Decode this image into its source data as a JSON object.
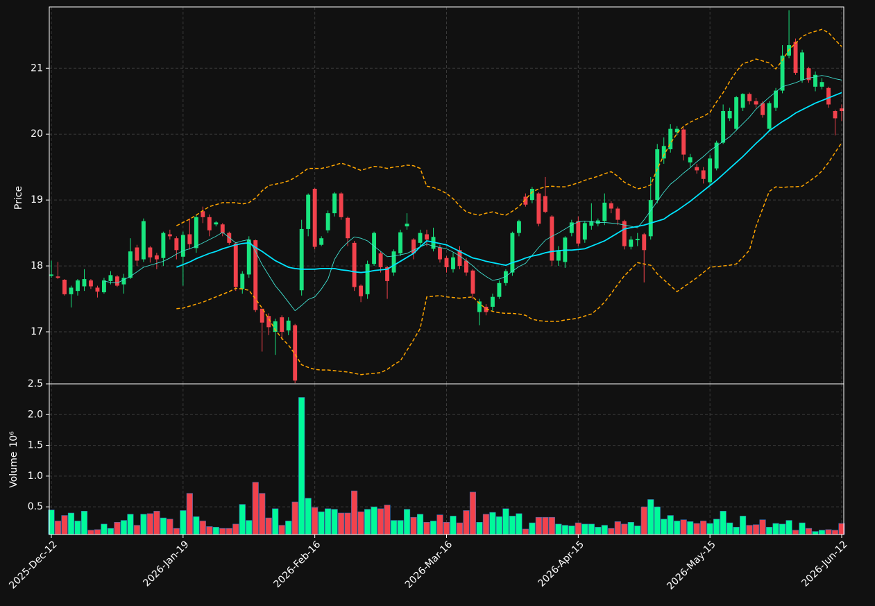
{
  "chart_data": {
    "type": "candlestick",
    "ylabel": "Price",
    "volume_label": "Volume",
    "volume_exponent": "10⁶",
    "up_color": "#19e57f",
    "down_color": "#f2424c",
    "volume_up_color": "#00fa9a",
    "volume_down_color": "#f2424c",
    "grid": true,
    "ylim": [
      16.21,
      21.93
    ],
    "yticks": [
      17,
      18,
      19,
      20,
      21
    ],
    "volume_ylim": [
      0.05,
      2.5
    ],
    "volume_yticks": [
      0.5,
      {
        "value": 1,
        "label": "1.0"
      },
      1.5,
      {
        "value": 2,
        "label": "2.0"
      },
      2.5
    ],
    "categories": [
      "2025-Dec-12",
      null,
      null,
      null,
      null,
      null,
      null,
      null,
      null,
      null,
      null,
      null,
      null,
      null,
      null,
      null,
      null,
      null,
      null,
      null,
      "2026-Jan-19",
      null,
      null,
      null,
      null,
      null,
      null,
      null,
      null,
      null,
      null,
      null,
      null,
      null,
      null,
      null,
      null,
      null,
      null,
      null,
      "2026-Feb-16",
      null,
      null,
      null,
      null,
      null,
      null,
      null,
      null,
      null,
      null,
      null,
      null,
      null,
      null,
      null,
      null,
      null,
      null,
      null,
      "2026-Mar-16",
      null,
      null,
      null,
      null,
      null,
      null,
      null,
      null,
      null,
      null,
      null,
      null,
      null,
      null,
      null,
      null,
      null,
      null,
      null,
      "2026-Apr-15",
      null,
      null,
      null,
      null,
      null,
      null,
      null,
      null,
      null,
      null,
      null,
      null,
      null,
      null,
      null,
      null,
      null,
      null,
      null,
      "2026-May-15",
      null,
      null,
      null,
      null,
      null,
      null,
      null,
      null,
      null,
      null,
      null,
      null,
      null,
      null,
      null,
      null,
      null,
      null,
      null,
      "2026-Jun-12"
    ],
    "open": [
      17.85,
      17.84,
      17.79,
      17.57,
      17.62,
      17.69,
      17.78,
      17.67,
      17.6,
      17.77,
      17.84,
      17.72,
      17.82,
      18.28,
      18.1,
      18.28,
      18.16,
      18.12,
      18.48,
      18.42,
      18.14,
      18.48,
      18.27,
      18.83,
      18.74,
      18.63,
      18.63,
      18.5,
      18.34,
      17.65,
      17.87,
      18.39,
      17.35,
      17.24,
      17.0,
      17.22,
      17.02,
      17.1,
      17.63,
      18.56,
      19.17,
      18.32,
      18.54,
      18.8,
      19.1,
      18.73,
      18.35,
      17.7,
      17.57,
      18.03,
      18.19,
      17.98,
      17.9,
      18.19,
      18.6,
      18.4,
      18.35,
      18.48,
      18.26,
      18.28,
      18.12,
      17.95,
      18.24,
      18.08,
      17.93,
      17.3,
      17.38,
      17.38,
      17.53,
      17.74,
      17.9,
      18.5,
      19.05,
      19.0,
      19.1,
      19.06,
      18.75,
      18.08,
      18.06,
      18.5,
      18.68,
      18.4,
      18.61,
      18.64,
      18.68,
      18.95,
      18.87,
      18.68,
      18.29,
      18.39,
      18.48,
      18.45,
      19.0,
      19.63,
      19.77,
      20.03,
      20.07,
      19.57,
      19.5,
      19.45,
      19.27,
      19.48,
      19.87,
      20.24,
      20.08,
      20.4,
      20.61,
      20.5,
      20.47,
      20.08,
      20.4,
      20.66,
      21.19,
      21.4,
      20.82,
      21.0,
      20.72,
      20.72,
      20.7,
      20.35,
      20.39
    ],
    "high": [
      18.08,
      18.06,
      17.8,
      17.7,
      17.8,
      17.95,
      17.8,
      17.7,
      17.82,
      17.92,
      17.86,
      17.88,
      18.42,
      18.32,
      18.72,
      18.3,
      18.2,
      18.52,
      18.55,
      18.45,
      18.52,
      18.72,
      18.78,
      18.9,
      18.78,
      18.68,
      18.65,
      18.52,
      18.36,
      17.92,
      18.45,
      18.4,
      17.35,
      17.28,
      17.2,
      17.25,
      17.22,
      17.12,
      18.7,
      19.1,
      19.18,
      18.45,
      18.84,
      19.12,
      19.12,
      18.75,
      18.38,
      17.72,
      18.08,
      18.52,
      18.22,
      18.0,
      18.25,
      18.55,
      18.8,
      18.42,
      18.55,
      18.55,
      18.58,
      18.32,
      18.15,
      18.2,
      18.3,
      18.12,
      17.95,
      17.5,
      17.42,
      17.58,
      17.78,
      17.95,
      18.52,
      18.7,
      19.1,
      19.2,
      19.12,
      19.35,
      18.77,
      18.3,
      18.45,
      18.7,
      18.75,
      18.68,
      18.95,
      18.72,
      19.1,
      18.98,
      18.9,
      18.7,
      18.45,
      18.5,
      18.5,
      19.35,
      19.85,
      19.95,
      20.15,
      20.12,
      20.1,
      19.7,
      19.55,
      19.5,
      19.68,
      19.9,
      20.45,
      20.4,
      20.58,
      20.62,
      20.63,
      20.55,
      20.5,
      20.5,
      20.7,
      21.35,
      21.88,
      21.45,
      21.28,
      21.02,
      20.95,
      20.85,
      20.72,
      20.37,
      20.45
    ],
    "low": [
      17.82,
      17.8,
      17.55,
      17.37,
      17.55,
      17.62,
      17.65,
      17.52,
      17.58,
      17.72,
      17.68,
      17.58,
      17.8,
      18.0,
      18.06,
      18.05,
      17.95,
      18.0,
      18.4,
      18.1,
      17.7,
      18.25,
      18.2,
      18.65,
      18.45,
      18.6,
      18.45,
      18.32,
      17.62,
      17.58,
      17.82,
      17.3,
      16.7,
      16.95,
      16.65,
      16.88,
      16.95,
      16.22,
      17.55,
      18.45,
      18.25,
      18.3,
      18.5,
      18.75,
      18.7,
      18.3,
      17.62,
      17.45,
      17.5,
      18.0,
      17.9,
      17.5,
      17.85,
      18.15,
      18.55,
      18.1,
      18.3,
      18.3,
      18.22,
      18.05,
      17.9,
      17.9,
      17.95,
      17.85,
      17.5,
      17.1,
      17.25,
      17.32,
      17.5,
      17.7,
      17.85,
      18.45,
      18.9,
      18.95,
      18.6,
      18.8,
      18.0,
      18.0,
      17.97,
      18.45,
      18.3,
      18.35,
      18.55,
      18.6,
      18.62,
      18.8,
      18.62,
      18.25,
      18.25,
      18.3,
      17.75,
      18.4,
      18.95,
      19.55,
      19.72,
      19.98,
      19.6,
      19.5,
      19.4,
      19.25,
      19.22,
      19.45,
      19.85,
      20.2,
      20.05,
      20.35,
      20.45,
      20.4,
      20.25,
      20.05,
      20.35,
      20.62,
      21.15,
      20.9,
      20.78,
      20.78,
      20.65,
      20.68,
      20.4,
      19.98,
      20.2
    ],
    "close": [
      17.87,
      17.82,
      17.57,
      17.67,
      17.78,
      17.8,
      17.69,
      17.61,
      17.78,
      17.86,
      17.7,
      17.82,
      18.22,
      18.08,
      18.68,
      18.13,
      18.1,
      18.5,
      18.45,
      18.24,
      18.47,
      18.33,
      18.74,
      18.74,
      18.54,
      18.66,
      18.5,
      18.35,
      17.68,
      17.88,
      18.4,
      17.33,
      17.14,
      17.07,
      17.16,
      17.0,
      17.17,
      16.26,
      18.56,
      19.08,
      18.29,
      18.42,
      18.8,
      19.1,
      18.74,
      18.42,
      17.68,
      17.54,
      18.03,
      18.5,
      17.98,
      17.77,
      18.22,
      18.51,
      18.64,
      18.19,
      18.5,
      18.4,
      18.44,
      18.1,
      17.98,
      18.13,
      18.0,
      17.9,
      17.58,
      17.46,
      17.3,
      17.53,
      17.74,
      17.92,
      18.5,
      18.68,
      18.93,
      19.17,
      18.64,
      18.82,
      18.08,
      18.24,
      18.43,
      18.66,
      18.34,
      18.65,
      18.68,
      18.69,
      18.96,
      18.87,
      18.7,
      18.3,
      18.4,
      18.41,
      18.24,
      19.0,
      19.77,
      19.82,
      20.08,
      20.08,
      19.69,
      19.65,
      19.45,
      19.32,
      19.63,
      19.87,
      20.35,
      20.35,
      20.56,
      20.61,
      20.5,
      20.45,
      20.29,
      20.47,
      20.66,
      21.19,
      21.35,
      20.93,
      21.24,
      20.82,
      20.9,
      20.79,
      20.45,
      20.24,
      20.35
    ],
    "volume": [
      0.45,
      0.27,
      0.36,
      0.4,
      0.27,
      0.43,
      0.12,
      0.13,
      0.22,
      0.15,
      0.25,
      0.28,
      0.38,
      0.2,
      0.38,
      0.39,
      0.43,
      0.32,
      0.3,
      0.15,
      0.44,
      0.72,
      0.34,
      0.27,
      0.18,
      0.17,
      0.15,
      0.15,
      0.22,
      0.54,
      0.28,
      0.9,
      0.72,
      0.32,
      0.47,
      0.2,
      0.27,
      0.58,
      2.28,
      0.64,
      0.49,
      0.42,
      0.47,
      0.46,
      0.4,
      0.4,
      0.76,
      0.42,
      0.46,
      0.5,
      0.47,
      0.53,
      0.28,
      0.28,
      0.46,
      0.33,
      0.38,
      0.25,
      0.27,
      0.37,
      0.25,
      0.35,
      0.24,
      0.44,
      0.74,
      0.25,
      0.38,
      0.41,
      0.34,
      0.47,
      0.35,
      0.39,
      0.14,
      0.24,
      0.33,
      0.33,
      0.33,
      0.22,
      0.2,
      0.19,
      0.24,
      0.22,
      0.22,
      0.17,
      0.2,
      0.15,
      0.26,
      0.22,
      0.25,
      0.19,
      0.5,
      0.62,
      0.5,
      0.3,
      0.36,
      0.27,
      0.29,
      0.26,
      0.23,
      0.27,
      0.23,
      0.3,
      0.43,
      0.24,
      0.17,
      0.35,
      0.2,
      0.21,
      0.29,
      0.17,
      0.23,
      0.22,
      0.28,
      0.12,
      0.24,
      0.15,
      0.1,
      0.12,
      0.13,
      0.12,
      0.23
    ],
    "lines": [
      {
        "color": "#40e0d0",
        "width": 0.9,
        "dashed": false,
        "values": [
          null,
          null,
          null,
          null,
          null,
          null,
          null,
          null,
          17.77,
          17.75,
          17.74,
          17.79,
          17.84,
          17.91,
          17.98,
          18.01,
          18.04,
          18.07,
          18.12,
          18.18,
          18.23,
          18.26,
          18.3,
          18.35,
          18.4,
          18.45,
          18.51,
          18.43,
          18.35,
          18.38,
          18.4,
          18.22,
          18.02,
          17.86,
          17.7,
          17.58,
          17.45,
          17.32,
          17.4,
          17.49,
          17.53,
          17.65,
          17.8,
          18.1,
          18.26,
          18.36,
          18.44,
          18.42,
          18.38,
          18.3,
          18.22,
          18.14,
          18.15,
          18.17,
          18.19,
          18.24,
          18.29,
          18.33,
          18.3,
          18.28,
          18.26,
          18.21,
          18.15,
          18.08,
          18.0,
          17.91,
          17.84,
          17.78,
          17.8,
          17.84,
          17.92,
          17.99,
          18.04,
          18.16,
          18.28,
          18.39,
          18.45,
          18.5,
          18.56,
          18.62,
          18.67,
          18.68,
          18.67,
          18.66,
          18.66,
          18.65,
          18.64,
          18.62,
          18.6,
          18.58,
          18.7,
          18.84,
          18.98,
          19.12,
          19.24,
          19.32,
          19.41,
          19.49,
          19.58,
          19.66,
          19.75,
          19.82,
          19.89,
          19.96,
          20.06,
          20.16,
          20.26,
          20.38,
          20.47,
          20.56,
          20.64,
          20.72,
          20.75,
          20.78,
          20.82,
          20.85,
          20.87,
          20.89,
          20.87,
          20.84,
          20.82
        ]
      },
      {
        "color": "#00e5ff",
        "width": 1.8,
        "dashed": false,
        "values": [
          null,
          null,
          null,
          null,
          null,
          null,
          null,
          null,
          null,
          null,
          null,
          null,
          null,
          null,
          null,
          null,
          null,
          null,
          null,
          17.98,
          18.02,
          18.06,
          18.11,
          18.15,
          18.19,
          18.22,
          18.26,
          18.29,
          18.32,
          18.34,
          18.35,
          18.28,
          18.22,
          18.15,
          18.08,
          18.03,
          17.98,
          17.96,
          17.95,
          17.95,
          17.95,
          17.96,
          17.96,
          17.96,
          17.94,
          17.93,
          17.91,
          17.9,
          17.91,
          17.93,
          17.94,
          17.95,
          18.01,
          18.07,
          18.13,
          18.19,
          18.29,
          18.38,
          18.36,
          18.34,
          18.32,
          18.27,
          18.22,
          18.17,
          18.12,
          18.1,
          18.07,
          18.05,
          18.03,
          18.01,
          18.05,
          18.08,
          18.12,
          18.15,
          18.17,
          18.2,
          18.22,
          18.23,
          18.24,
          18.24,
          18.25,
          18.26,
          18.3,
          18.34,
          18.38,
          18.44,
          18.5,
          18.56,
          18.58,
          18.6,
          18.62,
          18.65,
          18.68,
          18.71,
          18.78,
          18.84,
          18.91,
          18.98,
          19.06,
          19.14,
          19.22,
          19.3,
          19.39,
          19.48,
          19.57,
          19.66,
          19.76,
          19.86,
          19.95,
          20.05,
          20.12,
          20.19,
          20.25,
          20.32,
          20.37,
          20.42,
          20.47,
          20.51,
          20.55,
          20.59,
          20.63
        ]
      },
      {
        "color": "#ffa500",
        "width": 1.5,
        "dashed": true,
        "values": [
          null,
          null,
          null,
          null,
          null,
          null,
          null,
          null,
          null,
          null,
          null,
          null,
          null,
          null,
          null,
          null,
          null,
          null,
          null,
          18.61,
          18.66,
          18.71,
          18.77,
          18.84,
          18.9,
          18.93,
          18.96,
          18.96,
          18.96,
          18.94,
          18.96,
          19.03,
          19.14,
          19.22,
          19.24,
          19.26,
          19.29,
          19.34,
          19.41,
          19.48,
          19.48,
          19.48,
          19.5,
          19.53,
          19.56,
          19.53,
          19.49,
          19.45,
          19.48,
          19.51,
          19.5,
          19.48,
          19.5,
          19.51,
          19.53,
          19.52,
          19.48,
          19.21,
          19.19,
          19.15,
          19.1,
          19.02,
          18.91,
          18.82,
          18.79,
          18.77,
          18.8,
          18.82,
          18.79,
          18.77,
          18.83,
          18.9,
          19.01,
          19.12,
          19.17,
          19.2,
          19.21,
          19.2,
          19.2,
          19.23,
          19.26,
          19.3,
          19.33,
          19.36,
          19.4,
          19.43,
          19.36,
          19.27,
          19.22,
          19.17,
          19.19,
          19.23,
          19.47,
          19.68,
          19.86,
          20.01,
          20.12,
          20.18,
          20.23,
          20.27,
          20.33,
          20.49,
          20.63,
          20.8,
          20.95,
          21.07,
          21.1,
          21.14,
          21.11,
          21.08,
          20.99,
          21.12,
          21.28,
          21.38,
          21.48,
          21.53,
          21.56,
          21.59,
          21.54,
          21.43,
          21.33
        ]
      },
      {
        "color": "#ffa500",
        "width": 1.5,
        "dashed": true,
        "values": [
          null,
          null,
          null,
          null,
          null,
          null,
          null,
          null,
          null,
          null,
          null,
          null,
          null,
          null,
          null,
          null,
          null,
          null,
          null,
          17.35,
          17.36,
          17.39,
          17.42,
          17.45,
          17.49,
          17.53,
          17.57,
          17.61,
          17.66,
          17.65,
          17.63,
          17.5,
          17.36,
          17.2,
          17.03,
          16.9,
          16.8,
          16.66,
          16.5,
          16.46,
          16.43,
          16.42,
          16.42,
          16.41,
          16.4,
          16.39,
          16.37,
          16.35,
          16.36,
          16.37,
          16.38,
          16.43,
          16.5,
          16.56,
          16.72,
          16.88,
          17.05,
          17.53,
          17.54,
          17.55,
          17.53,
          17.52,
          17.51,
          17.52,
          17.53,
          17.43,
          17.35,
          17.31,
          17.29,
          17.28,
          17.28,
          17.27,
          17.25,
          17.19,
          17.17,
          17.16,
          17.16,
          17.16,
          17.18,
          17.19,
          17.21,
          17.24,
          17.27,
          17.35,
          17.45,
          17.58,
          17.72,
          17.85,
          17.95,
          18.05,
          18.03,
          18.01,
          17.88,
          17.79,
          17.7,
          17.61,
          17.68,
          17.75,
          17.82,
          17.9,
          17.98,
          17.99,
          18.0,
          18.01,
          18.03,
          18.13,
          18.24,
          18.6,
          18.87,
          19.13,
          19.2,
          19.19,
          19.2,
          19.2,
          19.21,
          19.28,
          19.35,
          19.44,
          19.57,
          19.72,
          19.87
        ]
      }
    ]
  }
}
